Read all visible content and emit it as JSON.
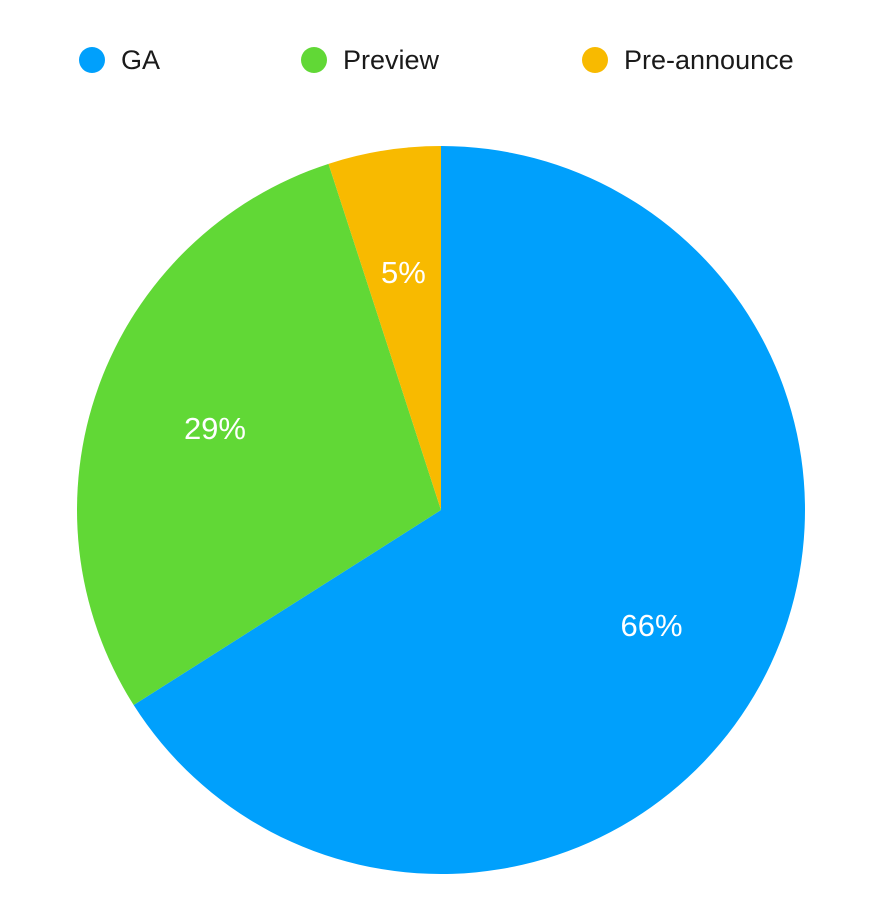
{
  "chart_data": {
    "type": "pie",
    "categories": [
      "GA",
      "Preview",
      "Pre-announce"
    ],
    "values": [
      66,
      29,
      5
    ],
    "value_labels": [
      "66%",
      "29%",
      "5%"
    ],
    "colors": [
      "#00a0fc",
      "#61d836",
      "#f8ba00"
    ],
    "start_angle": "12 o'clock",
    "direction": "clockwise",
    "legend_position": "top"
  },
  "legend": {
    "items": [
      {
        "label": "GA",
        "color": "#00a0fc"
      },
      {
        "label": "Preview",
        "color": "#61d836"
      },
      {
        "label": "Pre-announce",
        "color": "#f8ba00"
      }
    ]
  }
}
